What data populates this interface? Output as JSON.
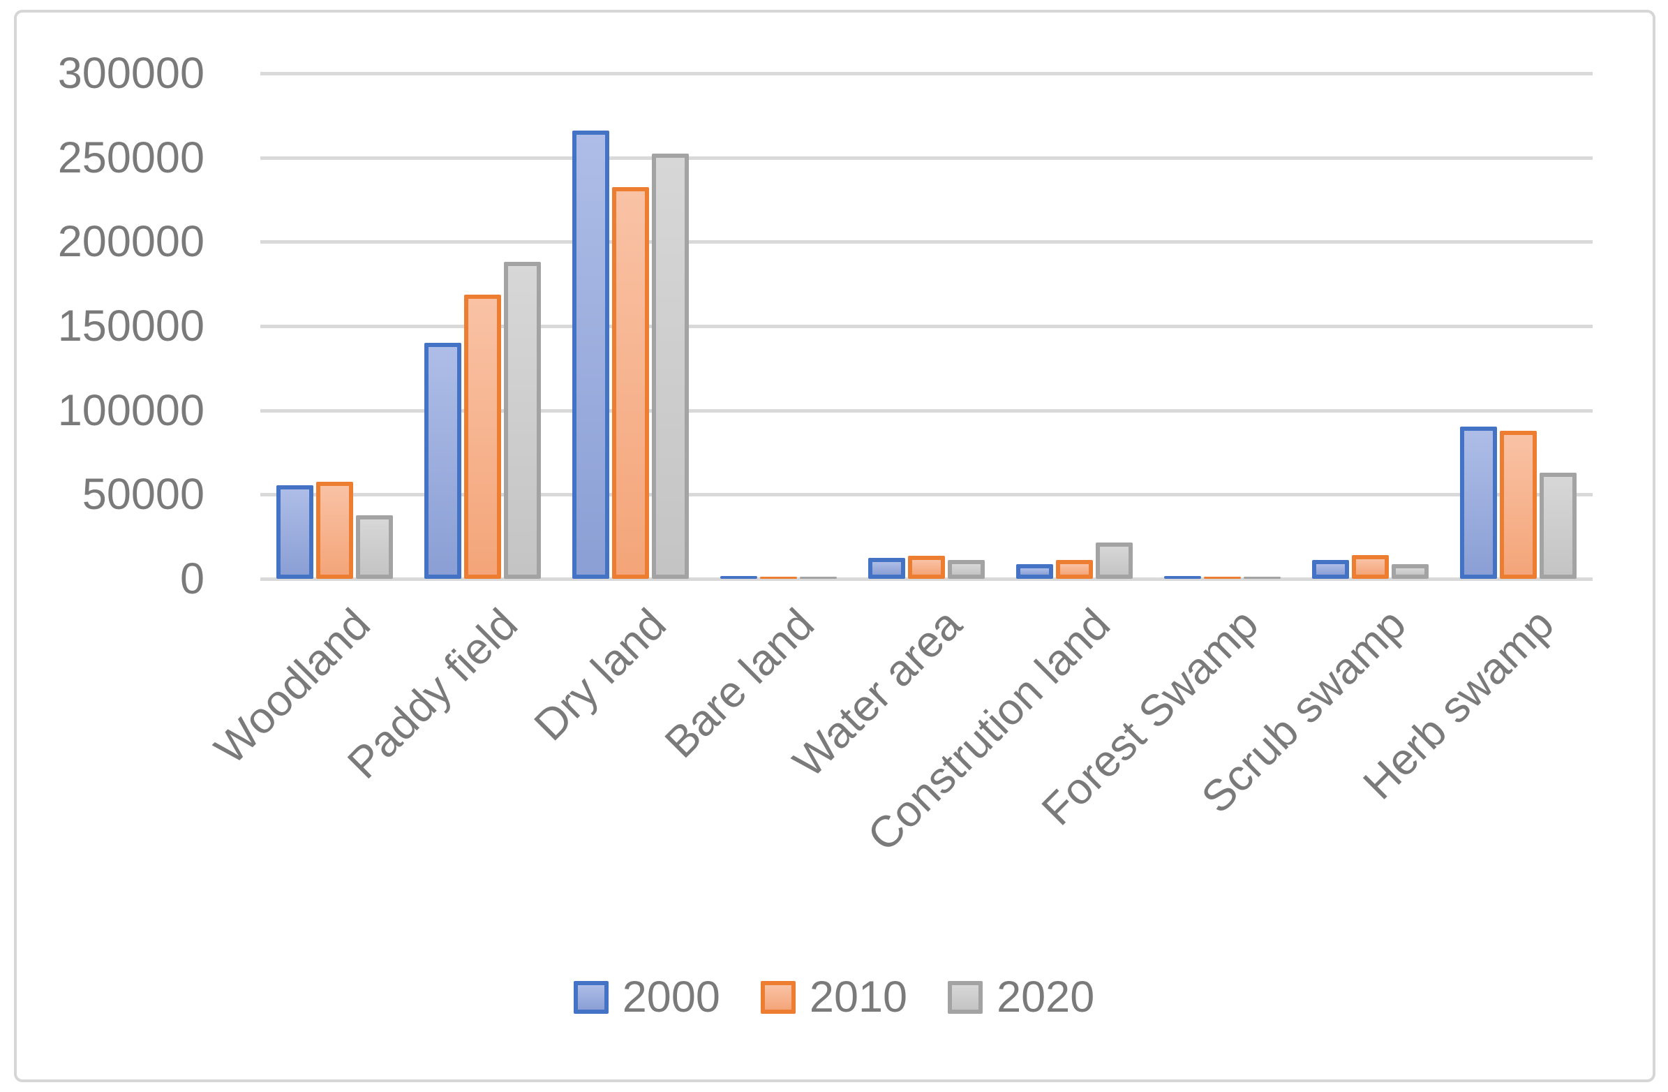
{
  "chart_data": {
    "type": "bar",
    "title": "",
    "categories": [
      "Woodland",
      "Paddy field",
      "Dry land",
      "Bare land",
      "Water area",
      "Constrution land",
      "Forest Swamp",
      "Scrub swamp",
      "Herb swamp"
    ],
    "series": [
      {
        "name": "2000",
        "border_color": "#4472C4",
        "fill_top": "#AEBDE7",
        "fill_bottom": "#8B9FD5",
        "values": [
          55500,
          140000,
          266000,
          1500,
          12500,
          8500,
          1500,
          11000,
          90500
        ]
      },
      {
        "name": "2010",
        "border_color": "#ED7D31",
        "fill_top": "#F9C2A5",
        "fill_bottom": "#F4A579",
        "values": [
          57500,
          168500,
          232500,
          1300,
          13500,
          11000,
          1300,
          14000,
          88000
        ]
      },
      {
        "name": "2020",
        "border_color": "#A3A3A3",
        "fill_top": "#D7D7D7",
        "fill_bottom": "#C4C4C4",
        "values": [
          37500,
          188000,
          252500,
          900,
          11000,
          21500,
          500,
          8500,
          63000
        ]
      }
    ],
    "y_axis": {
      "min": 0,
      "max": 300000,
      "step": 50000,
      "tick_labels_top_to_bottom": [
        "300000",
        "250000",
        "200000",
        "150000",
        "100000",
        "50000",
        "0"
      ]
    },
    "x_axis_label_rotation_deg": 45,
    "grid": "horizontal",
    "gridline_color": "#D9D9D9",
    "legend_position": "bottom",
    "legend_labels": [
      "2000",
      "2010",
      "2020"
    ],
    "text_color": "#7A7A7A",
    "frame_color": "#D6D6D6"
  }
}
